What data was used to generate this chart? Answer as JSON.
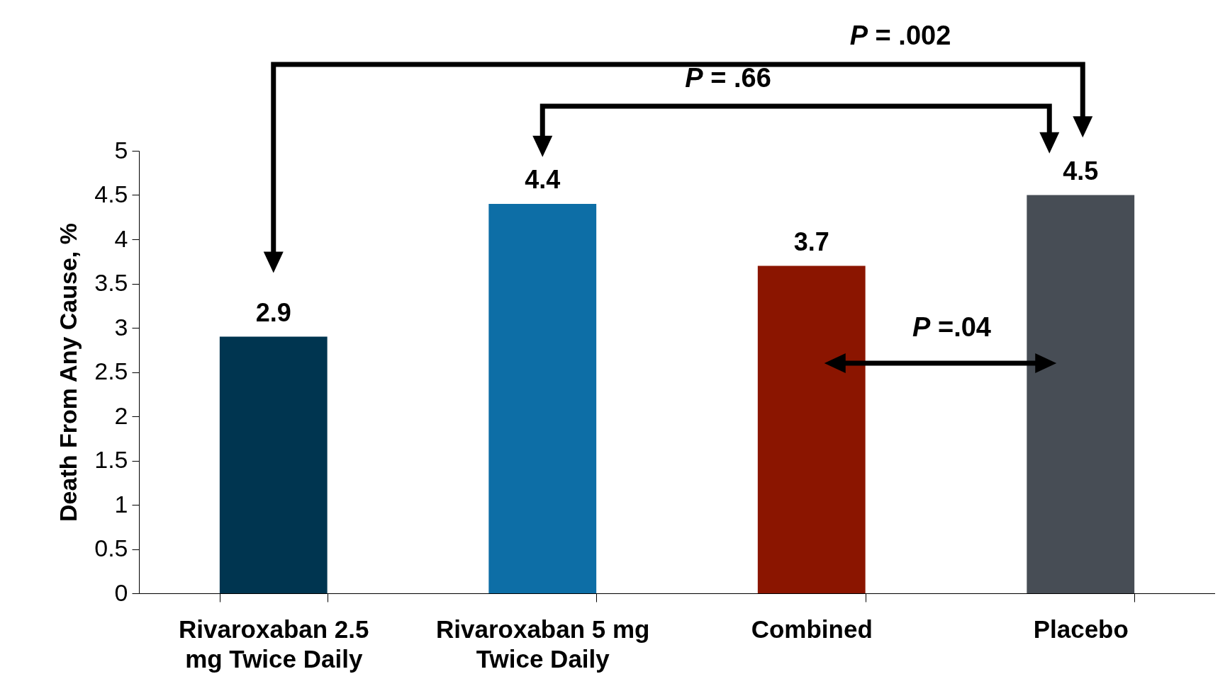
{
  "chart_data": {
    "type": "bar",
    "ylabel": "Death From Any Cause, %",
    "categories": [
      "Rivaroxaban 2.5 mg Twice Daily",
      "Rivaroxaban 5 mg Twice Daily",
      "Combined",
      "Placebo"
    ],
    "values": [
      2.9,
      4.4,
      3.7,
      4.5
    ],
    "colors": [
      "#003550",
      "#0d6ea6",
      "#8b1500",
      "#474d55"
    ],
    "ylim": [
      0,
      5
    ],
    "yticks": [
      0,
      0.5,
      1,
      1.5,
      2,
      2.5,
      3,
      3.5,
      4,
      4.5,
      5
    ],
    "data_labels": true,
    "grid": false,
    "legend": false,
    "annotations": [
      "P = .002",
      "P = .66",
      "P =.04"
    ]
  }
}
